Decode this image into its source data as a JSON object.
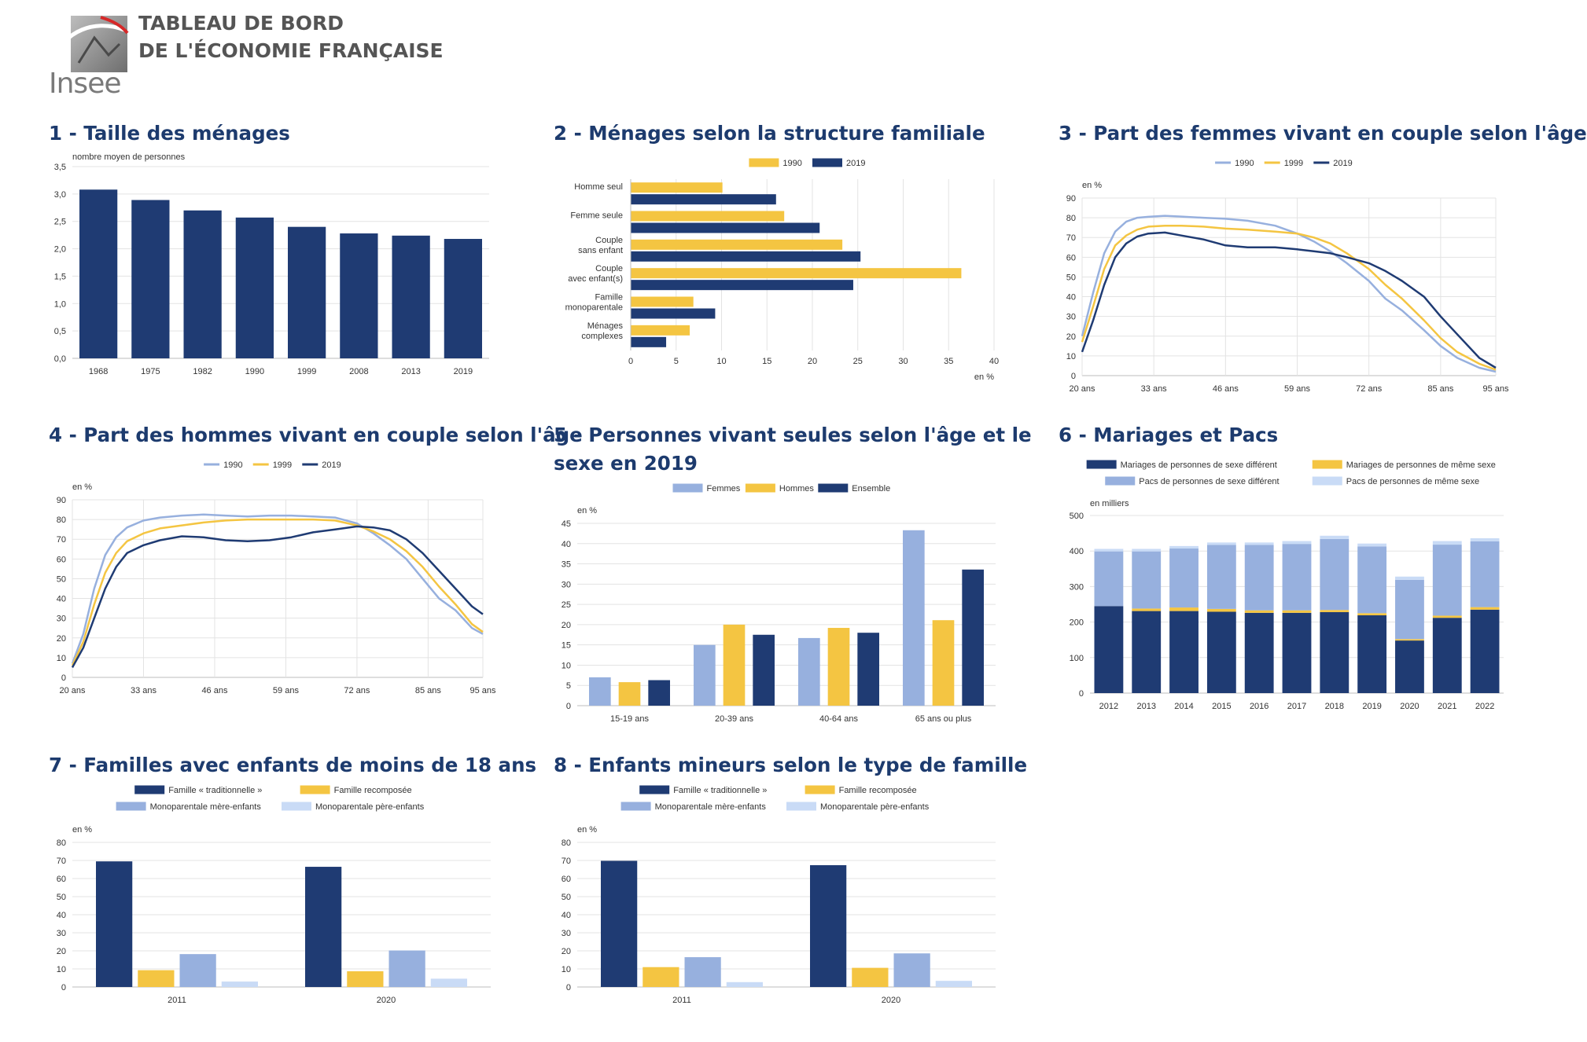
{
  "header": {
    "logo_text": "Insee",
    "title_line1": "TABLEAU DE BORD",
    "title_line2": "DE L'ÉCONOMIE FRANÇAISE"
  },
  "colors": {
    "navy": "#1f3b73",
    "yellow": "#f4c542",
    "lightblue": "#97b0de",
    "paleblue": "#c9dbf6",
    "title": "#1d3b6e",
    "grid": "#e3e3e3"
  },
  "chart_data": [
    {
      "id": "c1",
      "type": "bar",
      "title": "1 - Taille des ménages",
      "unit": "nombre moyen de personnes",
      "categories": [
        "1968",
        "1975",
        "1982",
        "1990",
        "1999",
        "2008",
        "2013",
        "2019"
      ],
      "values": [
        3.08,
        2.89,
        2.7,
        2.57,
        2.4,
        2.28,
        2.24,
        2.18
      ],
      "ylim": [
        0,
        3.5
      ],
      "yticks": [
        "0,0",
        "0,5",
        "1,0",
        "1,5",
        "2,0",
        "2,5",
        "3,0",
        "3,5"
      ],
      "grid": true
    },
    {
      "id": "c2",
      "type": "bar",
      "orientation": "horizontal",
      "title": "2 - Ménages selon la structure familiale",
      "unit": "en %",
      "categories": [
        [
          "Homme seul"
        ],
        [
          "Femme seule"
        ],
        [
          "Couple",
          "sans enfant"
        ],
        [
          "Couple",
          "avec enfant(s)"
        ],
        [
          "Famille",
          "monoparentale"
        ],
        [
          "Ménages",
          "complexes"
        ]
      ],
      "series": [
        {
          "name": "1990",
          "color": "#f4c542",
          "values": [
            10.1,
            16.9,
            23.3,
            36.4,
            6.9,
            6.5
          ]
        },
        {
          "name": "2019",
          "color": "#1f3b73",
          "values": [
            16.0,
            20.8,
            25.3,
            24.5,
            9.3,
            3.9
          ]
        }
      ],
      "xlim": [
        0,
        40
      ],
      "xticks": [
        "0",
        "5",
        "10",
        "15",
        "20",
        "25",
        "30",
        "35",
        "40"
      ],
      "legend": "top",
      "grid": true
    },
    {
      "id": "c3",
      "type": "line",
      "title": "3 - Part des femmes vivant en couple selon l'âge",
      "unit": "en %",
      "xrange": [
        20,
        95
      ],
      "xticks": [
        "20 ans",
        "33 ans",
        "46 ans",
        "59 ans",
        "72 ans",
        "85 ans",
        "95 ans"
      ],
      "ylim": [
        0,
        90
      ],
      "yticks": [
        "0",
        "10",
        "20",
        "30",
        "40",
        "50",
        "60",
        "70",
        "80",
        "90"
      ],
      "series": [
        {
          "name": "1990",
          "color": "#97b0de",
          "x": [
            20,
            22,
            24,
            26,
            28,
            30,
            32,
            35,
            38,
            42,
            46,
            50,
            55,
            59,
            62,
            65,
            68,
            72,
            75,
            78,
            82,
            85,
            88,
            92,
            95
          ],
          "y": [
            20,
            42,
            62,
            73,
            78,
            80,
            80.5,
            81,
            80.6,
            80,
            79.5,
            78.5,
            76,
            72,
            68,
            63,
            57,
            48,
            39,
            33,
            23,
            15,
            9,
            4,
            2
          ]
        },
        {
          "name": "1999",
          "color": "#f4c542",
          "x": [
            20,
            22,
            24,
            26,
            28,
            30,
            32,
            35,
            38,
            42,
            46,
            50,
            55,
            59,
            62,
            65,
            68,
            72,
            75,
            78,
            82,
            85,
            88,
            92,
            95
          ],
          "y": [
            17,
            35,
            54,
            66,
            71,
            74,
            75.5,
            76,
            76,
            75.5,
            74.5,
            74,
            73,
            72,
            70,
            67,
            62,
            54,
            46,
            39,
            28,
            19,
            12,
            6,
            3
          ]
        },
        {
          "name": "2019",
          "color": "#1f3b73",
          "x": [
            20,
            22,
            24,
            26,
            28,
            30,
            32,
            35,
            38,
            42,
            46,
            50,
            55,
            59,
            62,
            65,
            68,
            72,
            75,
            78,
            82,
            85,
            88,
            92,
            95
          ],
          "y": [
            12,
            28,
            46,
            60,
            67,
            70.5,
            72,
            72.5,
            71,
            69,
            66,
            65,
            65,
            64,
            63,
            62,
            60,
            57,
            53,
            48,
            40,
            30,
            21,
            9,
            4
          ]
        }
      ],
      "legend": "top",
      "grid": true
    },
    {
      "id": "c4",
      "type": "line",
      "title": "4 - Part des hommes vivant en couple selon l'âge",
      "unit": "en %",
      "xrange": [
        20,
        95
      ],
      "xticks": [
        "20 ans",
        "33 ans",
        "46 ans",
        "59 ans",
        "72 ans",
        "85 ans",
        "95 ans"
      ],
      "ylim": [
        0,
        90
      ],
      "yticks": [
        "0",
        "10",
        "20",
        "30",
        "40",
        "50",
        "60",
        "70",
        "80",
        "90"
      ],
      "series": [
        {
          "name": "1990",
          "color": "#97b0de",
          "x": [
            20,
            22,
            24,
            26,
            28,
            30,
            33,
            36,
            40,
            44,
            48,
            52,
            56,
            60,
            64,
            68,
            72,
            75,
            78,
            81,
            84,
            87,
            90,
            93,
            95
          ],
          "y": [
            7,
            22,
            45,
            62,
            71,
            76,
            79.5,
            81,
            82,
            82.5,
            82,
            81.5,
            82,
            82,
            81.5,
            81,
            78,
            73,
            67,
            60,
            50,
            40,
            34,
            25,
            22
          ]
        },
        {
          "name": "1999",
          "color": "#f4c542",
          "x": [
            20,
            22,
            24,
            26,
            28,
            30,
            33,
            36,
            40,
            44,
            48,
            52,
            56,
            60,
            64,
            68,
            72,
            75,
            78,
            81,
            84,
            87,
            90,
            93,
            95
          ],
          "y": [
            6,
            18,
            37,
            53,
            63,
            69,
            73,
            75.5,
            77,
            78.5,
            79.5,
            80,
            80,
            80,
            80,
            79.5,
            77,
            74,
            70,
            64,
            56,
            46,
            37,
            27,
            23
          ]
        },
        {
          "name": "2019",
          "color": "#1f3b73",
          "x": [
            20,
            22,
            24,
            26,
            28,
            30,
            33,
            36,
            40,
            44,
            48,
            52,
            56,
            60,
            64,
            68,
            72,
            75,
            78,
            81,
            84,
            87,
            90,
            93,
            95
          ],
          "y": [
            5,
            15,
            30,
            45,
            56,
            63,
            67,
            69.5,
            71.5,
            71,
            69.5,
            69,
            69.5,
            71,
            73.5,
            75,
            76.5,
            76,
            74.5,
            70,
            63,
            54,
            45,
            36,
            32
          ]
        }
      ],
      "legend": "top",
      "grid": true
    },
    {
      "id": "c5",
      "type": "bar",
      "title": "5 - Personnes vivant seules selon l'âge et le sexe en 2019",
      "unit": "en %",
      "categories": [
        "15-19 ans",
        "20-39 ans",
        "40-64 ans",
        "65 ans ou plus"
      ],
      "series": [
        {
          "name": "Femmes",
          "color": "#97b0de",
          "values": [
            7.0,
            15.0,
            16.7,
            43.3
          ]
        },
        {
          "name": "Hommes",
          "color": "#f4c542",
          "values": [
            5.8,
            20.0,
            19.2,
            21.1
          ]
        },
        {
          "name": "Ensemble",
          "color": "#1f3b73",
          "values": [
            6.3,
            17.5,
            18.0,
            33.6
          ]
        }
      ],
      "ylim": [
        0,
        45
      ],
      "yticks": [
        "0",
        "5",
        "10",
        "15",
        "20",
        "25",
        "30",
        "35",
        "40",
        "45"
      ],
      "legend": "top",
      "grid": true
    },
    {
      "id": "c6",
      "type": "bar",
      "stacked": true,
      "title": "6 - Mariages et Pacs",
      "unit": "en milliers",
      "categories": [
        "2012",
        "2013",
        "2014",
        "2015",
        "2016",
        "2017",
        "2018",
        "2019",
        "2020",
        "2021",
        "2022"
      ],
      "series": [
        {
          "name": "Mariages de personnes de sexe différent",
          "color": "#1f3b73",
          "values": [
            245,
            231,
            231,
            229,
            226,
            226,
            228,
            219,
            148,
            212,
            235
          ]
        },
        {
          "name": "Mariages de personnes de même sexe",
          "color": "#f4c542",
          "values": [
            0,
            7,
            10,
            8,
            7,
            7,
            6,
            6,
            4,
            6,
            7
          ]
        },
        {
          "name": "Pacs de personnes de sexe différent",
          "color": "#97b0de",
          "values": [
            154,
            161,
            166,
            180,
            184,
            187,
            200,
            188,
            167,
            200,
            185
          ]
        },
        {
          "name": "Pacs de personnes de même sexe",
          "color": "#c9dbf6",
          "values": [
            7,
            7,
            7,
            7,
            7,
            8,
            9,
            8,
            9,
            10,
            9
          ]
        }
      ],
      "ylim": [
        0,
        500
      ],
      "yticks": [
        "0",
        "100",
        "200",
        "300",
        "400",
        "500"
      ],
      "legend": "top",
      "grid": true
    },
    {
      "id": "c7",
      "type": "bar",
      "title": "7 - Familles avec enfants de moins de 18 ans",
      "unit": "en %",
      "categories": [
        "2011",
        "2020"
      ],
      "series": [
        {
          "name": "Famille « traditionnelle »",
          "color": "#1f3b73",
          "values": [
            69.5,
            66.5
          ]
        },
        {
          "name": "Famille recomposée",
          "color": "#f4c542",
          "values": [
            9.3,
            8.7
          ]
        },
        {
          "name": "Monoparentale mère-enfants",
          "color": "#97b0de",
          "values": [
            18.2,
            20.2
          ]
        },
        {
          "name": "Monoparentale père-enfants",
          "color": "#c9dbf6",
          "values": [
            3.0,
            4.6
          ]
        }
      ],
      "ylim": [
        0,
        80
      ],
      "yticks": [
        "0",
        "10",
        "20",
        "30",
        "40",
        "50",
        "60",
        "70",
        "80"
      ],
      "legend": "top",
      "grid": true
    },
    {
      "id": "c8",
      "type": "bar",
      "title": "8 - Enfants mineurs selon le type de famille",
      "unit": "en %",
      "categories": [
        "2011",
        "2020"
      ],
      "series": [
        {
          "name": "Famille « traditionnelle »",
          "color": "#1f3b73",
          "values": [
            69.8,
            67.4
          ]
        },
        {
          "name": "Famille recomposée",
          "color": "#f4c542",
          "values": [
            11.0,
            10.6
          ]
        },
        {
          "name": "Monoparentale mère-enfants",
          "color": "#97b0de",
          "values": [
            16.5,
            18.6
          ]
        },
        {
          "name": "Monoparentale père-enfants",
          "color": "#c9dbf6",
          "values": [
            2.7,
            3.4
          ]
        }
      ],
      "ylim": [
        0,
        80
      ],
      "yticks": [
        "0",
        "10",
        "20",
        "30",
        "40",
        "50",
        "60",
        "70",
        "80"
      ],
      "legend": "top",
      "grid": true
    }
  ]
}
